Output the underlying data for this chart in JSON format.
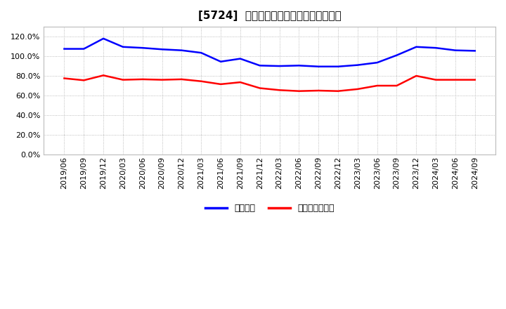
{
  "title": "[5724]  固定比率、固定長期適合率の推移",
  "x_labels": [
    "2019/06",
    "2019/09",
    "2019/12",
    "2020/03",
    "2020/06",
    "2020/09",
    "2020/12",
    "2021/03",
    "2021/06",
    "2021/09",
    "2021/12",
    "2022/03",
    "2022/06",
    "2022/09",
    "2022/12",
    "2023/03",
    "2023/06",
    "2023/09",
    "2023/12",
    "2024/03",
    "2024/06",
    "2024/09"
  ],
  "fixed_ratio": [
    107.5,
    107.5,
    118.0,
    109.5,
    108.5,
    107.0,
    106.0,
    103.5,
    94.5,
    97.5,
    90.5,
    90.0,
    90.5,
    89.5,
    89.5,
    91.0,
    93.5,
    101.0,
    109.5,
    108.5,
    106.0,
    105.5
  ],
  "fixed_long_ratio": [
    77.5,
    75.5,
    80.5,
    76.0,
    76.5,
    76.0,
    76.5,
    74.5,
    71.5,
    73.5,
    67.5,
    65.5,
    64.5,
    65.0,
    64.5,
    66.5,
    70.0,
    70.0,
    80.0,
    76.0,
    76.0,
    76.0
  ],
  "blue_color": "#0000ff",
  "red_color": "#ff0000",
  "bg_color": "#ffffff",
  "grid_color": "#aaaaaa",
  "ylim_min": 0,
  "ylim_max": 130,
  "yticks": [
    0,
    20,
    40,
    60,
    80,
    100,
    120
  ],
  "legend_labels": [
    "固定比率",
    "固定長期適合率"
  ],
  "title_fontsize": 11,
  "tick_fontsize": 8,
  "legend_fontsize": 9,
  "line_width": 1.8
}
